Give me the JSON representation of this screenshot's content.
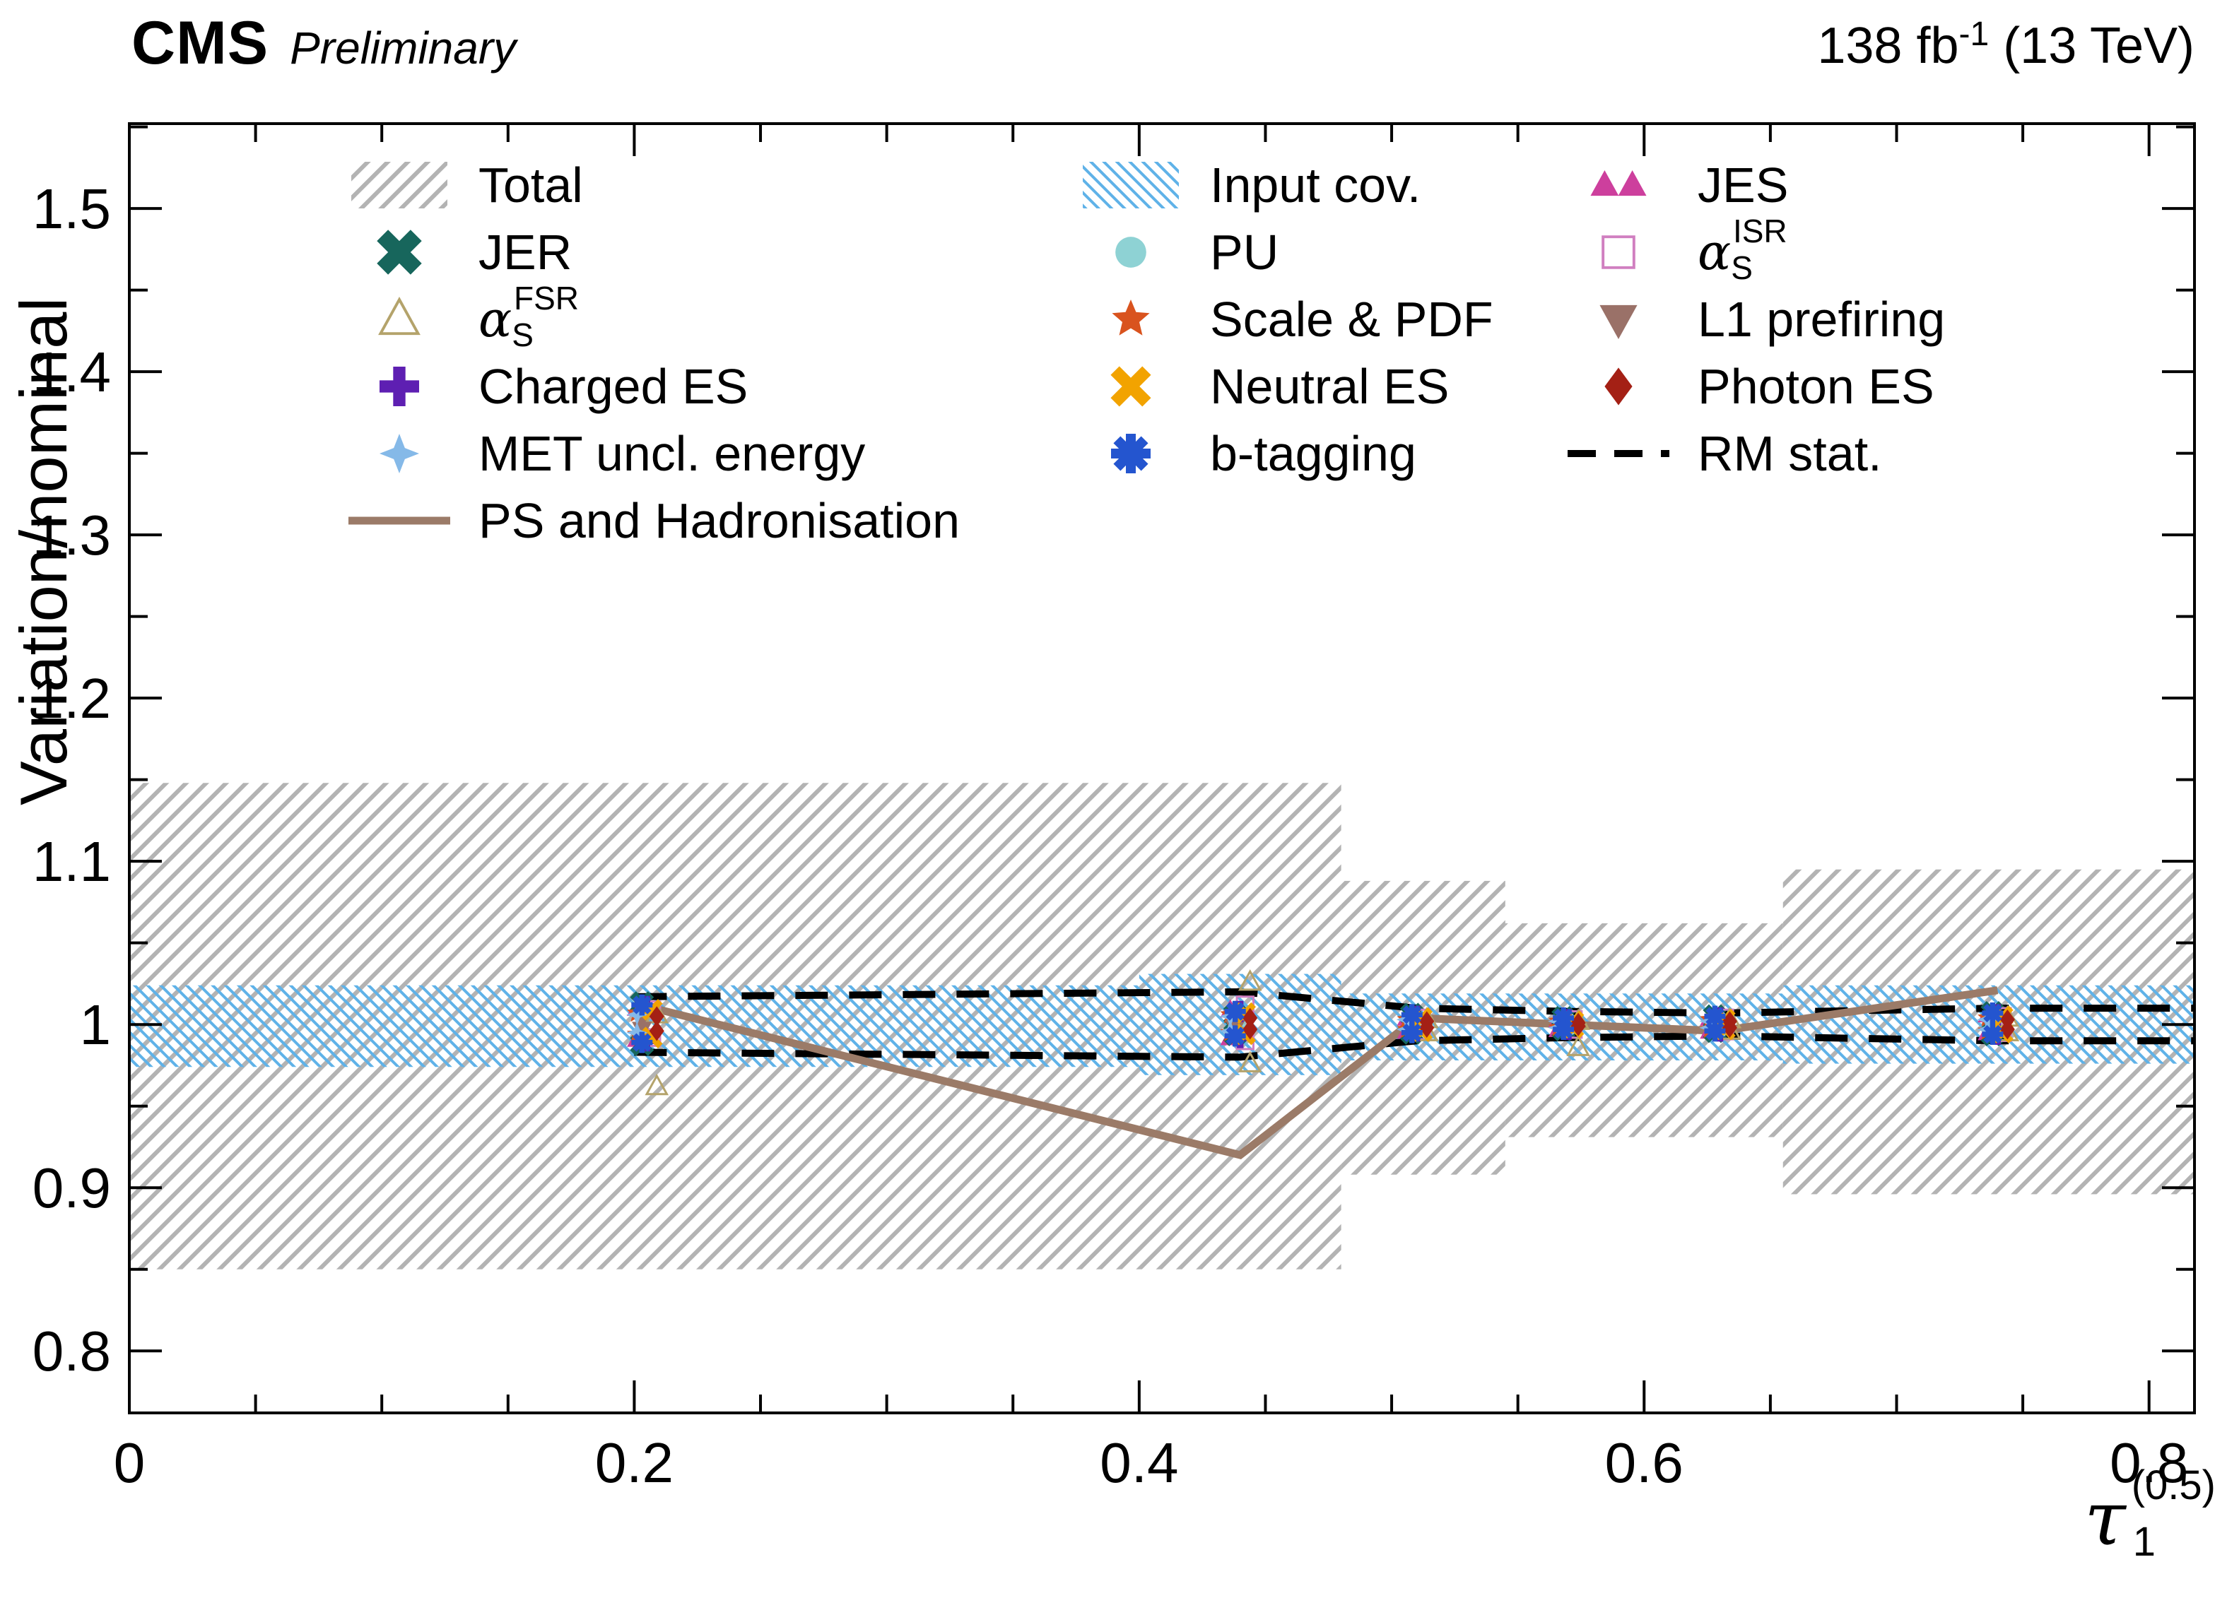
{
  "header": {
    "experiment": "CMS",
    "status": "Preliminary",
    "lumi_main": "138 fb",
    "lumi_sup": "-1",
    "lumi_tail": " (13 TeV)"
  },
  "axes": {
    "y_title": "Variation/nominal",
    "x_title_main": "τ",
    "x_title_sub": "1",
    "x_title_sup": "(0.5)",
    "x_ticks": [
      "0",
      "0.2",
      "0.4",
      "0.6",
      "0.8"
    ],
    "x_tick_values": [
      0,
      0.2,
      0.4,
      0.6,
      0.8
    ],
    "y_ticks": [
      "0.8",
      "0.9",
      "1",
      "1.1",
      "1.2",
      "1.3",
      "1.4",
      "1.5"
    ],
    "y_tick_values": [
      0.8,
      0.9,
      1,
      1.1,
      1.2,
      1.3,
      1.4,
      1.5
    ],
    "xlim": [
      0,
      0.818
    ],
    "ylim": [
      0.762,
      1.552
    ]
  },
  "chart_data": {
    "type": "scatter",
    "title": "",
    "xlabel": "tau_1^(0.5)",
    "ylabel": "Variation/nominal",
    "xlim": [
      0,
      0.818
    ],
    "ylim": [
      0.762,
      1.552
    ],
    "grid": false,
    "legend_position": "top-inside",
    "x_positions": [
      0.205,
      0.44,
      0.51,
      0.57,
      0.63,
      0.74
    ],
    "bands": [
      {
        "id": "total",
        "name": "Total",
        "style": "hatch-gray",
        "color": "#ababab",
        "segments": [
          [
            0,
            0.48,
            0.85,
            1.148
          ],
          [
            0.48,
            0.545,
            0.908,
            1.088
          ],
          [
            0.545,
            0.655,
            0.931,
            1.062
          ],
          [
            0.655,
            0.818,
            0.896,
            1.095
          ]
        ]
      },
      {
        "id": "input-cov",
        "name": "Input cov.",
        "style": "hatch-blue",
        "color": "#5fb2e8",
        "segments": [
          [
            0,
            0.4,
            0.974,
            1.024
          ],
          [
            0.4,
            0.48,
            0.969,
            1.031
          ],
          [
            0.48,
            0.655,
            0.978,
            1.019
          ],
          [
            0.655,
            0.818,
            0.976,
            1.024
          ]
        ]
      }
    ],
    "rm_stat": {
      "name": "RM stat.",
      "color": "#000000",
      "up": [
        [
          0.2,
          1.017
        ],
        [
          0.44,
          1.02
        ],
        [
          0.51,
          1.01
        ],
        [
          0.57,
          1.008
        ],
        [
          0.63,
          1.007
        ],
        [
          0.74,
          1.01
        ],
        [
          0.818,
          1.01
        ]
      ],
      "down": [
        [
          0.2,
          0.983
        ],
        [
          0.44,
          0.98
        ],
        [
          0.51,
          0.99
        ],
        [
          0.57,
          0.992
        ],
        [
          0.63,
          0.993
        ],
        [
          0.74,
          0.99
        ],
        [
          0.818,
          0.99
        ]
      ]
    },
    "ps_line": {
      "name": "PS and Hadronisation",
      "color": "#9b7b68",
      "points": [
        [
          0.205,
          1.011
        ],
        [
          0.44,
          0.92
        ],
        [
          0.51,
          1.004
        ],
        [
          0.57,
          1.0
        ],
        [
          0.63,
          0.996
        ],
        [
          0.74,
          1.021
        ]
      ]
    },
    "series": [
      {
        "id": "jes",
        "name": "JES",
        "marker": "triangle",
        "color": "#cd3f9d",
        "up": [
          1.01,
          1.009,
          1.004,
          1.003,
          1.004,
          1.006
        ],
        "down": [
          0.991,
          0.992,
          0.996,
          0.997,
          0.996,
          0.995
        ]
      },
      {
        "id": "jer",
        "name": "JER",
        "marker": "xcross",
        "color": "#17665c",
        "up": [
          1.013,
          1.006,
          1.006,
          1.004,
          1.005,
          1.007
        ],
        "down": [
          0.988,
          0.994,
          0.995,
          0.997,
          0.996,
          0.994
        ]
      },
      {
        "id": "pu",
        "name": "PU",
        "marker": "circle",
        "color": "#8ed2d4",
        "up": [
          1.008,
          1.005,
          1.003,
          1.002,
          1.003,
          1.004
        ],
        "down": [
          0.993,
          0.996,
          0.997,
          0.998,
          0.997,
          0.996
        ]
      },
      {
        "id": "alpha-s-isr",
        "name": "alpha_S ISR",
        "marker": "square-open",
        "color": "#d07fc0",
        "up": [
          1.009,
          1.012,
          1.004,
          1.003,
          1.004,
          1.005
        ],
        "down": [
          0.992,
          0.99,
          0.996,
          0.997,
          0.996,
          0.995
        ]
      },
      {
        "id": "alpha-s-fsr",
        "name": "alpha_S FSR",
        "marker": "triangle-open",
        "color": "#b4a36b",
        "up": [
          1.006,
          1.026,
          1.003,
          1.002,
          1.003,
          1.004
        ],
        "down": [
          0.962,
          0.976,
          0.995,
          0.986,
          0.996,
          0.995
        ]
      },
      {
        "id": "scale-pdf",
        "name": "Scale & PDF",
        "marker": "star5",
        "color": "#d9531e",
        "up": [
          1.007,
          1.006,
          1.003,
          1.002,
          1.003,
          1.004
        ],
        "down": [
          0.994,
          0.995,
          0.997,
          0.998,
          0.997,
          0.996
        ]
      },
      {
        "id": "l1-prefiring",
        "name": "L1 prefiring",
        "marker": "triangle-down",
        "color": "#9a7168",
        "up": [
          1.004,
          1.003,
          1.002,
          1.001,
          1.002,
          1.002
        ],
        "down": [
          0.997,
          0.998,
          0.998,
          0.999,
          0.998,
          0.998
        ]
      },
      {
        "id": "charged-es",
        "name": "Charged ES",
        "marker": "plus",
        "color": "#5e1fb2",
        "up": [
          1.011,
          1.008,
          1.005,
          1.003,
          1.004,
          1.006
        ],
        "down": [
          0.99,
          0.992,
          0.996,
          0.997,
          0.996,
          0.994
        ]
      },
      {
        "id": "neutral-es",
        "name": "Neutral ES",
        "marker": "x",
        "color": "#f2a300",
        "up": [
          1.009,
          1.007,
          1.004,
          1.002,
          1.003,
          1.005
        ],
        "down": [
          0.992,
          0.994,
          0.996,
          0.998,
          0.997,
          0.995
        ]
      },
      {
        "id": "photon-es",
        "name": "Photon ES",
        "marker": "diamond",
        "color": "#a42015",
        "up": [
          1.005,
          1.004,
          1.002,
          1.001,
          1.002,
          1.003
        ],
        "down": [
          0.996,
          0.997,
          0.998,
          0.999,
          0.998,
          0.997
        ]
      },
      {
        "id": "met-uncl-energy",
        "name": "MET uncl. energy",
        "marker": "star4",
        "color": "#85b9e8",
        "up": [
          1.006,
          1.005,
          1.003,
          1.002,
          1.002,
          1.003
        ],
        "down": [
          0.995,
          0.996,
          0.997,
          0.998,
          0.998,
          0.997
        ]
      },
      {
        "id": "b-tagging",
        "name": "b-tagging",
        "marker": "asterisk",
        "color": "#2455cf",
        "up": [
          1.012,
          1.008,
          1.006,
          1.004,
          1.005,
          1.007
        ],
        "down": [
          0.989,
          0.993,
          0.995,
          0.997,
          0.996,
          0.994
        ]
      }
    ],
    "legend": {
      "columns": [
        [
          {
            "id": "total",
            "label": "Total",
            "swatch": "hatch-gray"
          },
          {
            "id": "jer",
            "label": "JER",
            "swatch": "xcross",
            "color": "#17665c"
          },
          {
            "id": "alpha-s-fsr",
            "label": "α",
            "sub": "S",
            "sup": "FSR",
            "swatch": "triangle-open",
            "color": "#b4a36b"
          },
          {
            "id": "charged-es",
            "label": "Charged ES",
            "swatch": "plus",
            "color": "#5e1fb2"
          },
          {
            "id": "met-uncl-energy",
            "label": "MET uncl. energy",
            "swatch": "star4",
            "color": "#85b9e8"
          },
          {
            "id": "ps-hadronisation",
            "label": "PS and Hadronisation",
            "swatch": "line",
            "color": "#9b7b68"
          }
        ],
        [
          {
            "id": "input-cov",
            "label": "Input cov.",
            "swatch": "hatch-blue"
          },
          {
            "id": "pu",
            "label": "PU",
            "swatch": "circle",
            "color": "#8ed2d4"
          },
          {
            "id": "scale-pdf",
            "label": "Scale & PDF",
            "swatch": "star5",
            "color": "#d9531e"
          },
          {
            "id": "neutral-es",
            "label": "Neutral ES",
            "swatch": "x",
            "color": "#f2a300"
          },
          {
            "id": "b-tagging",
            "label": "b-tagging",
            "swatch": "asterisk",
            "color": "#2455cf"
          }
        ],
        [
          {
            "id": "jes",
            "label": "JES",
            "swatch": "double-triangle",
            "color": "#cd3f9d"
          },
          {
            "id": "alpha-s-isr",
            "label": "α",
            "sub": "S",
            "sup": "ISR",
            "swatch": "square-open",
            "color": "#d07fc0"
          },
          {
            "id": "l1-prefiring",
            "label": "L1 prefiring",
            "swatch": "triangle-down",
            "color": "#9a7168"
          },
          {
            "id": "photon-es",
            "label": "Photon ES",
            "swatch": "diamond",
            "color": "#a42015"
          },
          {
            "id": "rm-stat",
            "label": "RM stat.",
            "swatch": "dash",
            "color": "#000000"
          }
        ]
      ]
    }
  }
}
